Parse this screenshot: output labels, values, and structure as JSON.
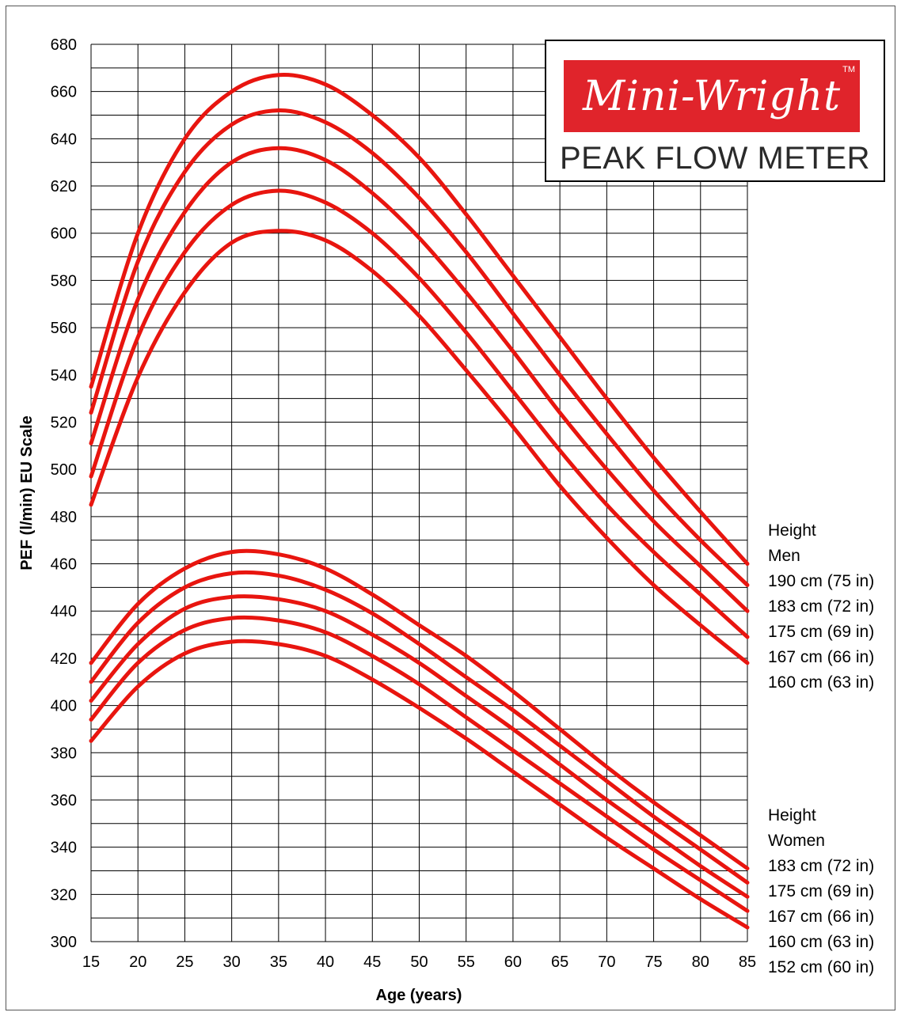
{
  "logo": {
    "brand": "Mini-Wright",
    "trademark": "TM",
    "subtitle": "PEAK FLOW METER",
    "banner_color": "#e0242b"
  },
  "legend": {
    "men": {
      "heading_1": "Height",
      "heading_2": "Men",
      "entries": [
        "190 cm (75 in)",
        "183 cm (72 in)",
        "175 cm (69 in)",
        "167 cm (66 in)",
        "160 cm (63 in)"
      ]
    },
    "women": {
      "heading_1": "Height",
      "heading_2": "Women",
      "entries": [
        "183 cm (72 in)",
        "175 cm (69 in)",
        "167 cm (66 in)",
        "160 cm (63 in)",
        "152 cm (60 in)"
      ]
    }
  },
  "chart_data": {
    "type": "line",
    "title": "",
    "xlabel": "Age (years)",
    "ylabel": "PEF (l/min) EU Scale",
    "xlim": [
      15,
      85
    ],
    "ylim": [
      300,
      680
    ],
    "x_ticks": [
      15,
      20,
      25,
      30,
      35,
      40,
      45,
      50,
      55,
      60,
      65,
      70,
      75,
      80,
      85
    ],
    "y_ticks": [
      300,
      320,
      340,
      360,
      380,
      400,
      420,
      440,
      460,
      480,
      500,
      520,
      540,
      560,
      580,
      600,
      620,
      640,
      660,
      680
    ],
    "grid": true,
    "line_color": "#e8150f",
    "x": [
      15,
      20,
      25,
      30,
      35,
      40,
      45,
      50,
      55,
      60,
      65,
      70,
      75,
      80,
      85
    ],
    "series": [
      {
        "name": "Men 190 cm (75 in)",
        "values": [
          535,
          600,
          640,
          660,
          667,
          663,
          650,
          632,
          608,
          582,
          556,
          530,
          505,
          482,
          460
        ]
      },
      {
        "name": "Men 183 cm (72 in)",
        "values": [
          524,
          588,
          626,
          646,
          652,
          647,
          634,
          615,
          592,
          566,
          540,
          515,
          491,
          470,
          451
        ]
      },
      {
        "name": "Men 175 cm (69 in)",
        "values": [
          511,
          572,
          609,
          630,
          636,
          631,
          617,
          598,
          575,
          550,
          524,
          500,
          478,
          459,
          440
        ]
      },
      {
        "name": "Men 167 cm (66 in)",
        "values": [
          497,
          556,
          592,
          612,
          618,
          613,
          600,
          581,
          558,
          533,
          508,
          485,
          465,
          447,
          429
        ]
      },
      {
        "name": "Men 160 cm (63 in)",
        "values": [
          485,
          539,
          575,
          596,
          601,
          597,
          584,
          565,
          542,
          518,
          493,
          471,
          451,
          434,
          418
        ]
      },
      {
        "name": "Women 183 cm (72 in)",
        "values": [
          418,
          443,
          458,
          465,
          464,
          458,
          447,
          434,
          421,
          406,
          390,
          374,
          359,
          345,
          331
        ]
      },
      {
        "name": "Women 175 cm (69 in)",
        "values": [
          410,
          435,
          450,
          456,
          455,
          449,
          439,
          426,
          412,
          398,
          383,
          368,
          353,
          339,
          325
        ]
      },
      {
        "name": "Women 167 cm (66 in)",
        "values": [
          402,
          426,
          441,
          446,
          445,
          440,
          430,
          418,
          404,
          390,
          375,
          360,
          346,
          332,
          319
        ]
      },
      {
        "name": "Women 160 cm (63 in)",
        "values": [
          394,
          418,
          432,
          437,
          436,
          431,
          421,
          409,
          395,
          381,
          367,
          353,
          339,
          326,
          313
        ]
      },
      {
        "name": "Women 152 cm (60 in)",
        "values": [
          385,
          408,
          422,
          427,
          426,
          421,
          411,
          399,
          386,
          372,
          358,
          344,
          331,
          318,
          306
        ]
      }
    ]
  }
}
